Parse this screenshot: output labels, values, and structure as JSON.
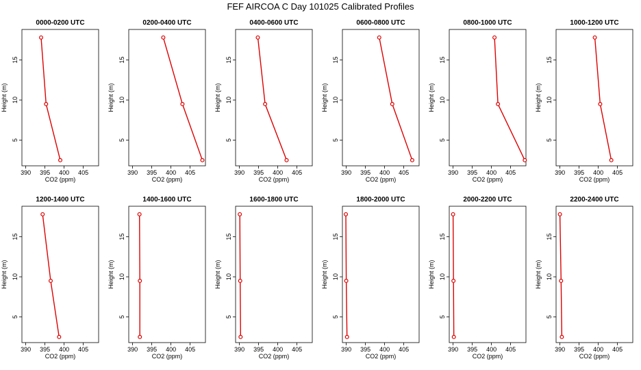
{
  "figure": {
    "title": "FEF AIRCOA C  Day 101025  Calibrated Profiles"
  },
  "chart_data": [
    {
      "type": "line",
      "title": "0000-0200 UTC",
      "xlabel": "CO2 (ppm)",
      "ylabel": "Height (m)",
      "xlim": [
        389,
        409
      ],
      "ylim": [
        1.8,
        18.8
      ],
      "xticks": [
        390,
        395,
        400,
        405
      ],
      "yticks": [
        5,
        10,
        15
      ],
      "x": [
        394.0,
        395.3,
        399.0
      ],
      "y": [
        17.8,
        9.5,
        2.5
      ]
    },
    {
      "type": "line",
      "title": "0200-0400 UTC",
      "xlabel": "CO2 (ppm)",
      "ylabel": "Height (m)",
      "xlim": [
        389,
        409
      ],
      "ylim": [
        1.8,
        18.8
      ],
      "xticks": [
        390,
        395,
        400,
        405
      ],
      "yticks": [
        5,
        10,
        15
      ],
      "x": [
        398.0,
        403.0,
        408.2
      ],
      "y": [
        17.8,
        9.5,
        2.5
      ]
    },
    {
      "type": "line",
      "title": "0400-0600 UTC",
      "xlabel": "CO2 (ppm)",
      "ylabel": "Height (m)",
      "xlim": [
        389,
        409
      ],
      "ylim": [
        1.8,
        18.8
      ],
      "xticks": [
        390,
        395,
        400,
        405
      ],
      "yticks": [
        5,
        10,
        15
      ],
      "x": [
        394.8,
        396.7,
        402.3
      ],
      "y": [
        17.8,
        9.5,
        2.5
      ]
    },
    {
      "type": "line",
      "title": "0600-0800 UTC",
      "xlabel": "CO2 (ppm)",
      "ylabel": "Height (m)",
      "xlim": [
        389,
        409
      ],
      "ylim": [
        1.8,
        18.8
      ],
      "xticks": [
        390,
        395,
        400,
        405
      ],
      "yticks": [
        5,
        10,
        15
      ],
      "x": [
        398.6,
        402.0,
        407.2
      ],
      "y": [
        17.8,
        9.5,
        2.5
      ]
    },
    {
      "type": "line",
      "title": "0800-1000 UTC",
      "xlabel": "CO2 (ppm)",
      "ylabel": "Height (m)",
      "xlim": [
        389,
        409
      ],
      "ylim": [
        1.8,
        18.8
      ],
      "xticks": [
        390,
        395,
        400,
        405
      ],
      "yticks": [
        5,
        10,
        15
      ],
      "x": [
        400.8,
        401.7,
        408.7
      ],
      "y": [
        17.8,
        9.5,
        2.5
      ]
    },
    {
      "type": "line",
      "title": "1000-1200 UTC",
      "xlabel": "CO2 (ppm)",
      "ylabel": "Height (m)",
      "xlim": [
        389,
        409
      ],
      "ylim": [
        1.8,
        18.8
      ],
      "xticks": [
        390,
        395,
        400,
        405
      ],
      "yticks": [
        5,
        10,
        15
      ],
      "x": [
        399.1,
        400.5,
        403.4
      ],
      "y": [
        17.8,
        9.5,
        2.5
      ]
    },
    {
      "type": "line",
      "title": "1200-1400 UTC",
      "xlabel": "CO2 (ppm)",
      "ylabel": "Height (m)",
      "xlim": [
        389,
        409
      ],
      "ylim": [
        1.8,
        18.8
      ],
      "xticks": [
        390,
        395,
        400,
        405
      ],
      "yticks": [
        5,
        10,
        15
      ],
      "x": [
        394.4,
        396.5,
        398.7
      ],
      "y": [
        17.8,
        9.5,
        2.5
      ]
    },
    {
      "type": "line",
      "title": "1400-1600 UTC",
      "xlabel": "CO2 (ppm)",
      "ylabel": "Height (m)",
      "xlim": [
        389,
        409
      ],
      "ylim": [
        1.8,
        18.8
      ],
      "xticks": [
        390,
        395,
        400,
        405
      ],
      "yticks": [
        5,
        10,
        15
      ],
      "x": [
        391.8,
        391.9,
        391.9
      ],
      "y": [
        17.8,
        9.5,
        2.5
      ]
    },
    {
      "type": "line",
      "title": "1600-1800 UTC",
      "xlabel": "CO2 (ppm)",
      "ylabel": "Height (m)",
      "xlim": [
        389,
        409
      ],
      "ylim": [
        1.8,
        18.8
      ],
      "xticks": [
        390,
        395,
        400,
        405
      ],
      "yticks": [
        5,
        10,
        15
      ],
      "x": [
        390.1,
        390.2,
        390.3
      ],
      "y": [
        17.8,
        9.5,
        2.5
      ]
    },
    {
      "type": "line",
      "title": "1800-2000 UTC",
      "xlabel": "CO2 (ppm)",
      "ylabel": "Height (m)",
      "xlim": [
        389,
        409
      ],
      "ylim": [
        1.8,
        18.8
      ],
      "xticks": [
        390,
        395,
        400,
        405
      ],
      "yticks": [
        5,
        10,
        15
      ],
      "x": [
        389.9,
        390.0,
        390.2
      ],
      "y": [
        17.8,
        9.5,
        2.5
      ]
    },
    {
      "type": "line",
      "title": "2000-2200 UTC",
      "xlabel": "CO2 (ppm)",
      "ylabel": "Height (m)",
      "xlim": [
        389,
        409
      ],
      "ylim": [
        1.8,
        18.8
      ],
      "xticks": [
        390,
        395,
        400,
        405
      ],
      "yticks": [
        5,
        10,
        15
      ],
      "x": [
        390.0,
        390.1,
        390.2
      ],
      "y": [
        17.8,
        9.5,
        2.5
      ]
    },
    {
      "type": "line",
      "title": "2200-2400 UTC",
      "xlabel": "CO2 (ppm)",
      "ylabel": "Height (m)",
      "xlim": [
        389,
        409
      ],
      "ylim": [
        1.8,
        18.8
      ],
      "xticks": [
        390,
        395,
        400,
        405
      ],
      "yticks": [
        5,
        10,
        15
      ],
      "x": [
        390.0,
        390.3,
        390.5
      ],
      "y": [
        17.8,
        9.5,
        2.5
      ]
    }
  ],
  "style": {
    "series_color": "#dd0000",
    "axis_color": "#000000"
  }
}
